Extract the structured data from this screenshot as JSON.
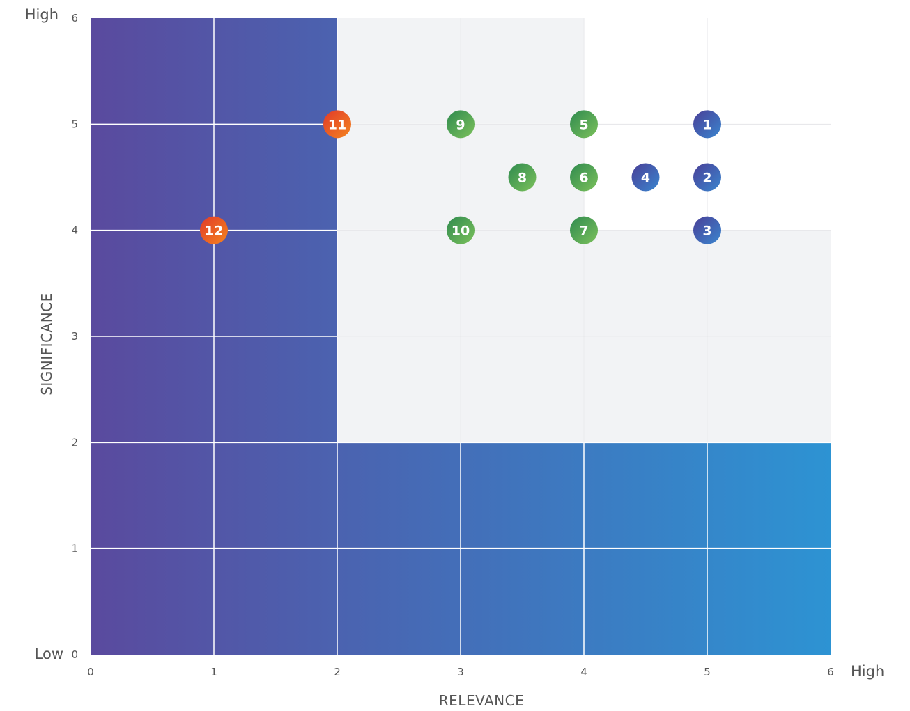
{
  "chart_data": {
    "type": "scatter",
    "xlabel": "RELEVANCE",
    "ylabel": "SIGNIFICANCE",
    "xlim": [
      0,
      6
    ],
    "ylim": [
      0,
      6
    ],
    "x_ticks": [
      0,
      1,
      2,
      3,
      4,
      5,
      6
    ],
    "y_ticks": [
      0,
      1,
      2,
      3,
      4,
      5,
      6
    ],
    "x_axis_low_label": "",
    "x_axis_high_label": "High",
    "y_axis_low_label": "Low",
    "y_axis_high_label": "High",
    "grid": true,
    "regions": {
      "high_region_color": "#f2f3f5",
      "gradient_start_color": "#5a4a9e",
      "gradient_end_color": "#2d93d3"
    },
    "points": [
      {
        "label": "1",
        "x": 5,
        "y": 5,
        "color": "#4657a8"
      },
      {
        "label": "2",
        "x": 5,
        "y": 4.5,
        "color": "#4657a8"
      },
      {
        "label": "3",
        "x": 5,
        "y": 4,
        "color": "#4657a8"
      },
      {
        "label": "4",
        "x": 4.5,
        "y": 4.5,
        "color": "#4657a8"
      },
      {
        "label": "5",
        "x": 4,
        "y": 5,
        "color": "#43a05a"
      },
      {
        "label": "6",
        "x": 4,
        "y": 4.5,
        "color": "#43a05a"
      },
      {
        "label": "7",
        "x": 4,
        "y": 4,
        "color": "#43a05a"
      },
      {
        "label": "8",
        "x": 3.5,
        "y": 4.5,
        "color": "#43a05a"
      },
      {
        "label": "9",
        "x": 3,
        "y": 5,
        "color": "#43a05a"
      },
      {
        "label": "10",
        "x": 3,
        "y": 4,
        "color": "#43a05a"
      },
      {
        "label": "11",
        "x": 2,
        "y": 5,
        "color": "#e8522d"
      },
      {
        "label": "12",
        "x": 1,
        "y": 4,
        "color": "#e8522d"
      }
    ]
  }
}
